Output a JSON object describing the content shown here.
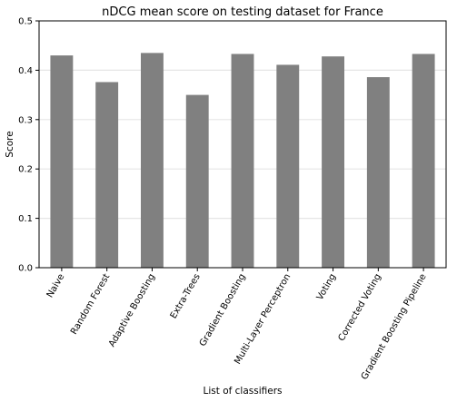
{
  "chart_data": {
    "type": "bar",
    "title": "nDCG mean score on testing dataset for France",
    "xlabel": "List of classifiers",
    "ylabel": "Score",
    "ylim": [
      0,
      0.5
    ],
    "yticks": [
      0.0,
      0.1,
      0.2,
      0.3,
      0.4,
      0.5
    ],
    "ytick_labels": [
      "0.0",
      "0.1",
      "0.2",
      "0.3",
      "0.4",
      "0.5"
    ],
    "categories": [
      "Naive",
      "Random Forest",
      "Adaptive Boosting",
      "Extra-Trees",
      "Gradient Boosting",
      "Multi-Layer Perceptron",
      "Voting",
      "Corrected Voting",
      "Gradient Boosting Pipeline"
    ],
    "values": [
      0.43,
      0.376,
      0.435,
      0.35,
      0.433,
      0.411,
      0.428,
      0.386,
      0.433
    ],
    "bar_color": "#808080",
    "grid": true,
    "grid_axis": "y",
    "legend": false
  }
}
